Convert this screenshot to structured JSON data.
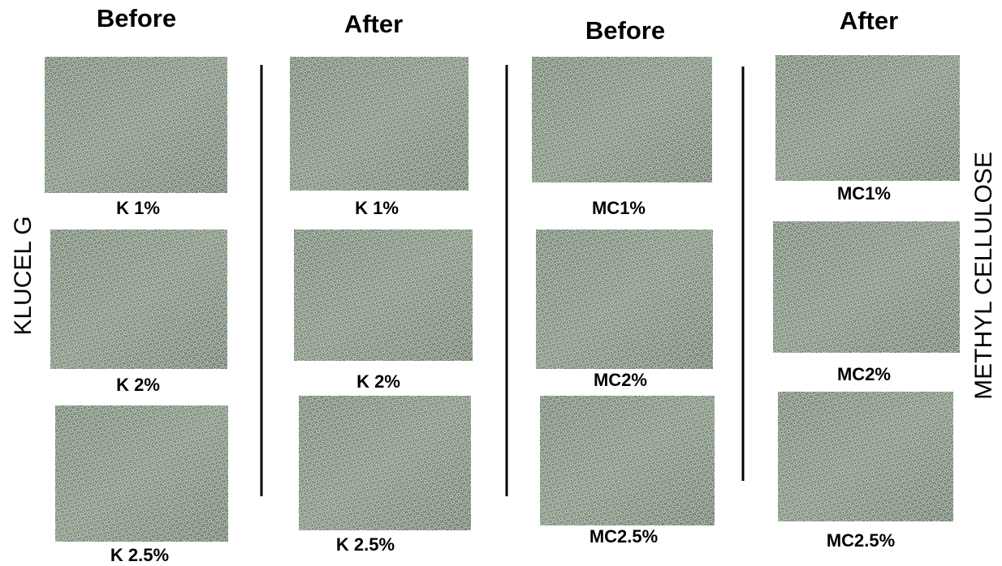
{
  "columns": [
    {
      "header": "Before",
      "items": [
        {
          "label": "K 1%"
        },
        {
          "label": "K 2%"
        },
        {
          "label": "K 2.5%"
        }
      ]
    },
    {
      "header": "After",
      "items": [
        {
          "label": "K 1%"
        },
        {
          "label": "K 2%"
        },
        {
          "label": "K 2.5%"
        }
      ]
    },
    {
      "header": "Before",
      "items": [
        {
          "label": "MC1%"
        },
        {
          "label": "MC2%"
        },
        {
          "label": "MC2.5%"
        }
      ]
    },
    {
      "header": "After",
      "items": [
        {
          "label": "MC1%"
        },
        {
          "label": "MC2%"
        },
        {
          "label": "MC2.5%"
        }
      ]
    }
  ],
  "side_labels": {
    "left": "KLUCEL G",
    "right": "METHYL CELLULOSE"
  }
}
